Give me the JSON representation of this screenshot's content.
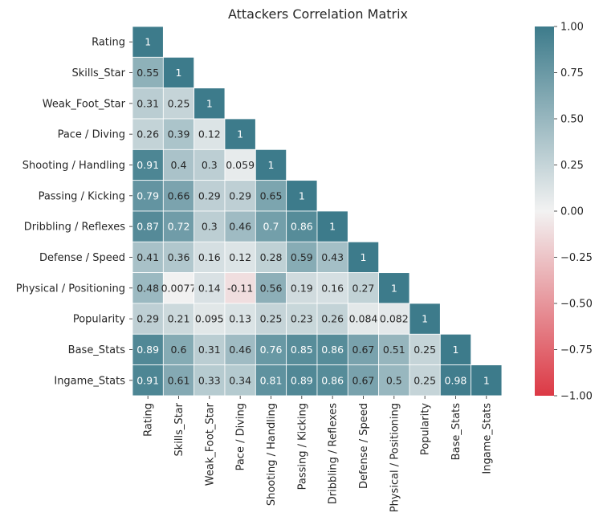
{
  "chart_data": {
    "type": "heatmap",
    "title": "Attackers Correlation Matrix",
    "variables": [
      "Rating",
      "Skills_Star",
      "Weak_Foot_Star",
      "Pace / Diving",
      "Shooting / Handling",
      "Passing / Kicking",
      "Dribbling / Reflexes",
      "Defense / Speed",
      "Physical / Positioning",
      "Popularity",
      "Base_Stats",
      "Ingame_Stats"
    ],
    "mask": "upper-triangle",
    "values": [
      [
        1
      ],
      [
        0.55,
        1
      ],
      [
        0.31,
        0.25,
        1
      ],
      [
        0.26,
        0.39,
        0.12,
        1
      ],
      [
        0.91,
        0.4,
        0.3,
        0.059,
        1
      ],
      [
        0.79,
        0.66,
        0.29,
        0.29,
        0.65,
        1
      ],
      [
        0.87,
        0.72,
        0.3,
        0.46,
        0.7,
        0.86,
        1
      ],
      [
        0.41,
        0.36,
        0.16,
        0.12,
        0.28,
        0.59,
        0.43,
        1
      ],
      [
        0.48,
        0.0077,
        0.14,
        -0.11,
        0.56,
        0.19,
        0.16,
        0.27,
        1
      ],
      [
        0.29,
        0.21,
        0.095,
        0.13,
        0.25,
        0.23,
        0.26,
        0.084,
        0.082,
        1
      ],
      [
        0.89,
        0.6,
        0.31,
        0.46,
        0.76,
        0.85,
        0.86,
        0.67,
        0.51,
        0.25,
        1
      ],
      [
        0.91,
        0.61,
        0.33,
        0.34,
        0.81,
        0.89,
        0.86,
        0.67,
        0.5,
        0.25,
        0.98,
        1
      ]
    ],
    "annotations": [
      [
        "1"
      ],
      [
        "0.55",
        "1"
      ],
      [
        "0.31",
        "0.25",
        "1"
      ],
      [
        "0.26",
        "0.39",
        "0.12",
        "1"
      ],
      [
        "0.91",
        "0.4",
        "0.3",
        "0.059",
        "1"
      ],
      [
        "0.79",
        "0.66",
        "0.29",
        "0.29",
        "0.65",
        "1"
      ],
      [
        "0.87",
        "0.72",
        "0.3",
        "0.46",
        "0.7",
        "0.86",
        "1"
      ],
      [
        "0.41",
        "0.36",
        "0.16",
        "0.12",
        "0.28",
        "0.59",
        "0.43",
        "1"
      ],
      [
        "0.48",
        "0.0077",
        "0.14",
        "-0.11",
        "0.56",
        "0.19",
        "0.16",
        "0.27",
        "1"
      ],
      [
        "0.29",
        "0.21",
        "0.095",
        "0.13",
        "0.25",
        "0.23",
        "0.26",
        "0.084",
        "0.082",
        "1"
      ],
      [
        "0.89",
        "0.6",
        "0.31",
        "0.46",
        "0.76",
        "0.85",
        "0.86",
        "0.67",
        "0.51",
        "0.25",
        "1"
      ],
      [
        "0.91",
        "0.61",
        "0.33",
        "0.34",
        "0.81",
        "0.89",
        "0.86",
        "0.67",
        "0.5",
        "0.25",
        "0.98",
        "1"
      ]
    ],
    "colorbar": {
      "range": [
        -1,
        1
      ],
      "ticks": [
        "1.00",
        "0.75",
        "0.50",
        "0.25",
        "0.00",
        "−0.25",
        "−0.50",
        "−0.75",
        "−1.00"
      ],
      "tick_values": [
        1,
        0.75,
        0.5,
        0.25,
        0,
        -0.25,
        -0.5,
        -0.75,
        -1
      ],
      "colormap": "diverging red-white-teal",
      "color_negative": "#dc3945",
      "color_center": "#f2f2f2",
      "color_positive": "#3d7b8b"
    }
  }
}
